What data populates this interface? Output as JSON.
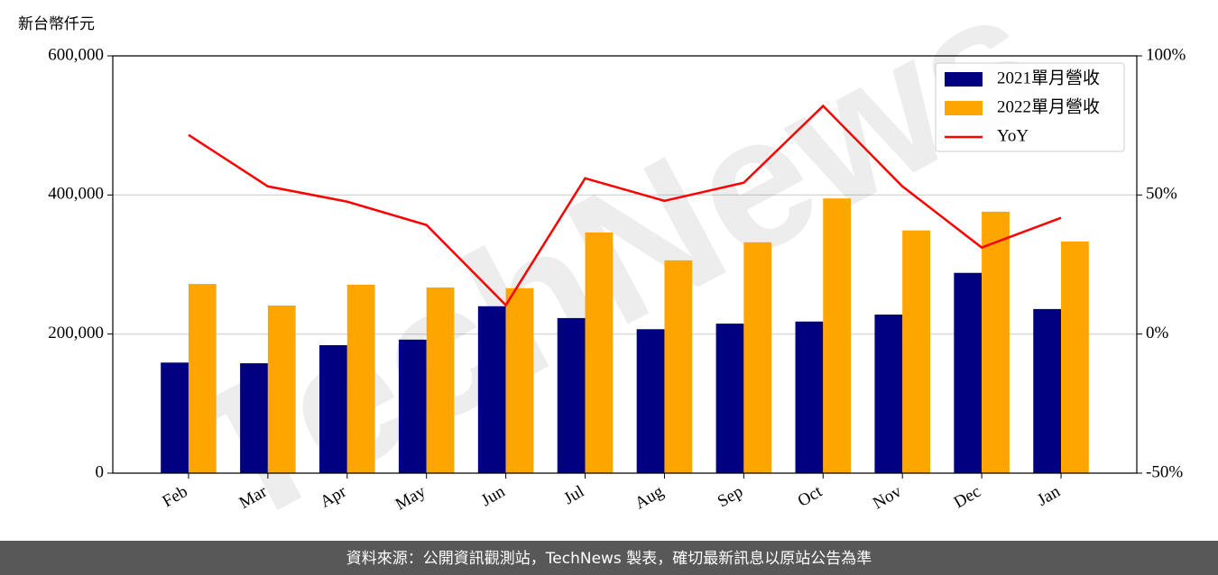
{
  "chart_data": {
    "type": "bar",
    "y_label": "新台幣仟元",
    "watermark": "TechNews",
    "source": "資料來源：公開資訊觀測站，TechNews 製表，確切最新訊息以原站公告為準",
    "categories": [
      "Feb",
      "Mar",
      "Apr",
      "May",
      "Jun",
      "Jul",
      "Aug",
      "Sep",
      "Oct",
      "Nov",
      "Dec",
      "Jan"
    ],
    "series": [
      {
        "name": "2021單月營收",
        "color": "#000080",
        "values": [
          159000,
          158000,
          184000,
          192000,
          240000,
          223000,
          207000,
          215000,
          218000,
          228000,
          288000,
          236000
        ]
      },
      {
        "name": "2022單月營收",
        "color": "#ffa500",
        "values": [
          272000,
          241000,
          271000,
          267000,
          266000,
          346000,
          306000,
          332000,
          395000,
          349000,
          376000,
          333000
        ]
      },
      {
        "name": "YoY",
        "color": "#ff0000",
        "type": "line",
        "axis": "y2",
        "values": [
          71.6,
          53.1,
          47.6,
          39.2,
          10.4,
          56.0,
          47.9,
          54.4,
          82.0,
          53.1,
          31.1,
          41.8
        ]
      }
    ],
    "ylim": [
      0,
      600000
    ],
    "yticks": [
      0,
      {
        "value": 200000,
        "label": "200,000"
      },
      {
        "value": 400000,
        "label": "400,000"
      },
      {
        "value": 600000,
        "label": "600,000"
      }
    ],
    "y2lim": [
      -50,
      100
    ],
    "y2ticks": [
      {
        "value": -50,
        "label": "-50%"
      },
      {
        "value": 0,
        "label": "0%"
      },
      {
        "value": 50,
        "label": "50%"
      },
      {
        "value": 100,
        "label": "100%"
      }
    ],
    "grid": true,
    "legend": "upper right"
  }
}
